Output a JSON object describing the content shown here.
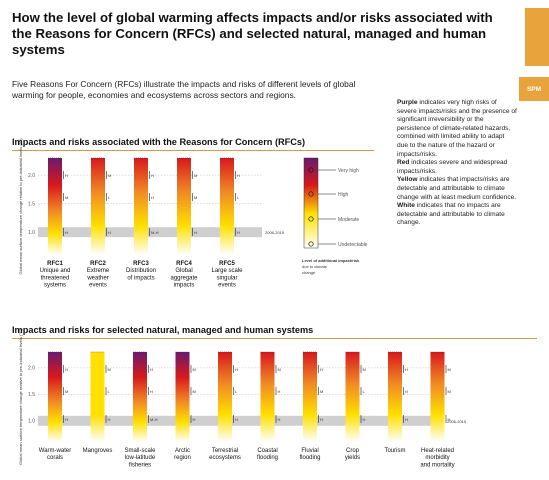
{
  "title": "How the level of global warming affects impacts and/or risks associated with the Reasons for Concern (RFCs) and selected natural, managed and human systems",
  "tab_label": "SPM",
  "intro": "Five Reasons For Concern (RFCs) illustrate the impacts and risks of different levels of global warming for people, economies and ecosystems across sectors and regions.",
  "section1_title": "Impacts and risks associated with the Reasons for Concern (RFCs)",
  "section2_title": "Impacts and risks for selected natural, managed and human systems",
  "y_axis_label": "Global mean surface temperature change relative to pre-industrial levels (°C)",
  "y_ticks": [
    "2.0",
    "1.5",
    "1.0"
  ],
  "period_label": "2006-2015",
  "legend_label": "Level of additional impact/risk due to climate change",
  "legend_levels": [
    "Very high",
    "High",
    "Moderate",
    "Undetectable"
  ],
  "legend_text": {
    "purple_word": "Purple",
    "purple_desc": " indicates very high risks of severe impacts/risks and the presence of significant irreversibility or the persistence of climate-related hazards, combined with limited ability to adapt due to the nature of the hazard or impacts/risks.",
    "red_word": "Red",
    "red_desc": " indicates severe and widespread impacts/risks.",
    "yellow_word": "Yellow",
    "yellow_desc": " indicates that impacts/risks are detectable and attributable to climate change with at least medium confidence.",
    "white_word": "White",
    "white_desc": " indicates that no impacts are detectable and attributable to climate change."
  },
  "confidence_letters": [
    "H",
    "M",
    "L",
    "VH",
    "M-H"
  ],
  "rfcs": [
    {
      "code": "RFC1",
      "name": [
        "Unique and",
        "threatened",
        "systems"
      ],
      "top": "purple"
    },
    {
      "code": "RFC2",
      "name": [
        "Extreme",
        "weather",
        "events"
      ],
      "top": "red"
    },
    {
      "code": "RFC3",
      "name": [
        "Distribution",
        "of impacts"
      ],
      "top": "red"
    },
    {
      "code": "RFC4",
      "name": [
        "Global",
        "aggregate",
        "impacts"
      ],
      "top": "red"
    },
    {
      "code": "RFC5",
      "name": [
        "Large scale",
        "singular",
        "events"
      ],
      "top": "red"
    }
  ],
  "systems": [
    {
      "name": [
        "Warm-water",
        "corals"
      ],
      "top": "purple"
    },
    {
      "name": [
        "Mangroves"
      ],
      "top": "yellow"
    },
    {
      "name": [
        "Small-scale",
        "low-latitude",
        "fisheries"
      ],
      "top": "purple"
    },
    {
      "name": [
        "Arctic",
        "region"
      ],
      "top": "purple"
    },
    {
      "name": [
        "Terrestrial",
        "ecosystems"
      ],
      "top": "red"
    },
    {
      "name": [
        "Coastal",
        "flooding"
      ],
      "top": "red"
    },
    {
      "name": [
        "Fluvial",
        "flooding"
      ],
      "top": "red"
    },
    {
      "name": [
        "Crop",
        "yields"
      ],
      "top": "red"
    },
    {
      "name": [
        "Tourism"
      ],
      "top": "red"
    },
    {
      "name": [
        "Heat-related",
        "morbidity",
        "and mortality"
      ],
      "top": "red"
    }
  ],
  "colors": {
    "purple": "#6a1b6e",
    "red": "#d7191c",
    "orange": "#f08a24",
    "yellow": "#ffe000",
    "white": "#ffffff",
    "accent": "#e8a33d",
    "band": "#cfcfcf"
  }
}
